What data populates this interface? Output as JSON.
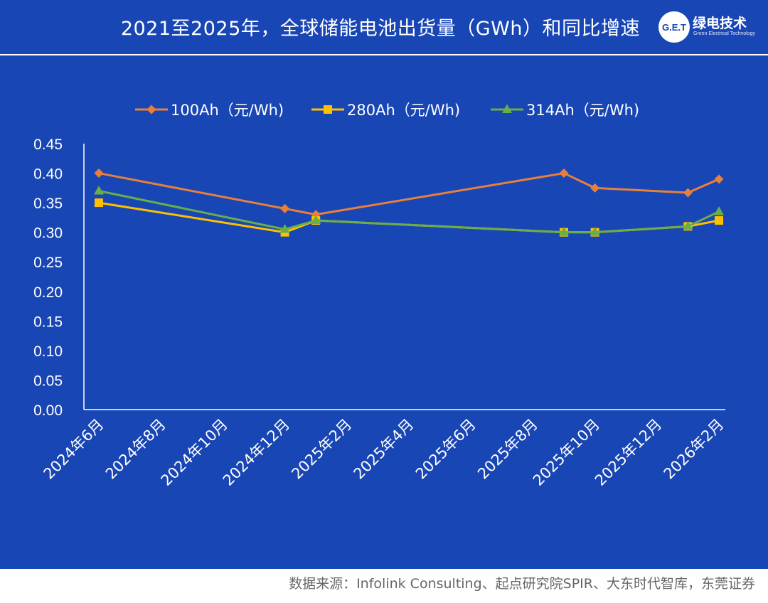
{
  "header": {
    "title": "2021至2025年，全球储能电池出货量（GWh）和同比增速",
    "logo_mark": "G.E.T",
    "logo_cn": "绿电技术",
    "logo_en": "Green Electrical Technology"
  },
  "footer": {
    "source": "数据来源：Infolink Consulting、起点研究院SPIR、大东时代智库，东莞证券"
  },
  "colors": {
    "background": "#1946B5",
    "series_100Ah": "#E8803A",
    "series_280Ah": "#FFC000",
    "series_314Ah": "#6AAE47"
  },
  "chart_data": {
    "type": "line",
    "xlabel": "",
    "ylabel": "",
    "x_axis": "date",
    "x_ticks": [
      "2024年6月",
      "2024年8月",
      "2024年10月",
      "2024年12月",
      "2025年2月",
      "2025年4月",
      "2025年6月",
      "2025年8月",
      "2025年10月",
      "2025年12月",
      "2026年2月"
    ],
    "y_ticks": [
      "0.00",
      "0.05",
      "0.10",
      "0.15",
      "0.20",
      "0.25",
      "0.30",
      "0.35",
      "0.40",
      "0.45"
    ],
    "ylim": [
      0,
      0.45
    ],
    "grid": false,
    "legend_position": "top",
    "series": [
      {
        "name": "100Ah（元/Wh)",
        "marker": "diamond",
        "color": "#E8803A",
        "points": [
          {
            "x": "2024-06",
            "y": 0.4
          },
          {
            "x": "2024-12",
            "y": 0.34
          },
          {
            "x": "2025-01",
            "y": 0.33
          },
          {
            "x": "2025-09",
            "y": 0.4
          },
          {
            "x": "2025-10",
            "y": 0.375
          },
          {
            "x": "2026-01",
            "y": 0.367
          },
          {
            "x": "2026-02",
            "y": 0.39
          }
        ]
      },
      {
        "name": "280Ah（元/Wh)",
        "marker": "square",
        "color": "#FFC000",
        "points": [
          {
            "x": "2024-06",
            "y": 0.35
          },
          {
            "x": "2024-12",
            "y": 0.3
          },
          {
            "x": "2025-01",
            "y": 0.32
          },
          {
            "x": "2025-09",
            "y": 0.3
          },
          {
            "x": "2025-10",
            "y": 0.3
          },
          {
            "x": "2026-01",
            "y": 0.31
          },
          {
            "x": "2026-02",
            "y": 0.32
          }
        ]
      },
      {
        "name": "314Ah（元/Wh)",
        "marker": "triangle",
        "color": "#6AAE47",
        "points": [
          {
            "x": "2024-06",
            "y": 0.37
          },
          {
            "x": "2024-12",
            "y": 0.305
          },
          {
            "x": "2025-01",
            "y": 0.32
          },
          {
            "x": "2025-09",
            "y": 0.3
          },
          {
            "x": "2025-10",
            "y": 0.3
          },
          {
            "x": "2026-01",
            "y": 0.31
          },
          {
            "x": "2026-02",
            "y": 0.335
          }
        ]
      }
    ]
  }
}
